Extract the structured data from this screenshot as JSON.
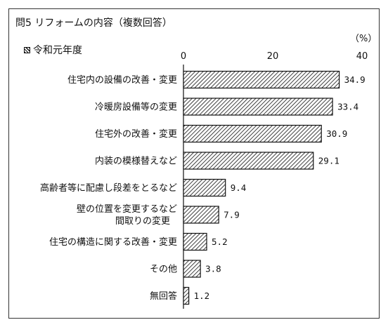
{
  "title": "問5 リフォームの内容（複数回答）",
  "unit": "（%）",
  "legend": {
    "label": "令和元年度"
  },
  "chart_data": {
    "type": "bar",
    "orientation": "horizontal",
    "title": "問5 リフォームの内容（複数回答）",
    "xlim": [
      0,
      40
    ],
    "ticks": [
      0,
      20,
      40
    ],
    "categories": [
      [
        "住宅内の設備の改善・変更"
      ],
      [
        "冷暖房設備等の変更"
      ],
      [
        "住宅外の改善・変更"
      ],
      [
        "内装の模様替えなど"
      ],
      [
        "高齢者等に配慮し段差をとるなど"
      ],
      [
        "壁の位置を変更するなど",
        "間取りの変更"
      ],
      [
        "住宅の構造に関する改善・変更"
      ],
      [
        "その他"
      ],
      [
        "無回答"
      ]
    ],
    "value_labels": [
      "34.9",
      "33.4",
      "30.9",
      "29.1",
      "9.4",
      "7.9",
      "5.2",
      "3.8",
      "1.2"
    ],
    "series": [
      {
        "name": "令和元年度",
        "values": [
          34.9,
          33.4,
          30.9,
          29.1,
          9.4,
          7.9,
          5.2,
          3.8,
          1.2
        ]
      }
    ],
    "grid": false,
    "legend_position": "top-left"
  }
}
